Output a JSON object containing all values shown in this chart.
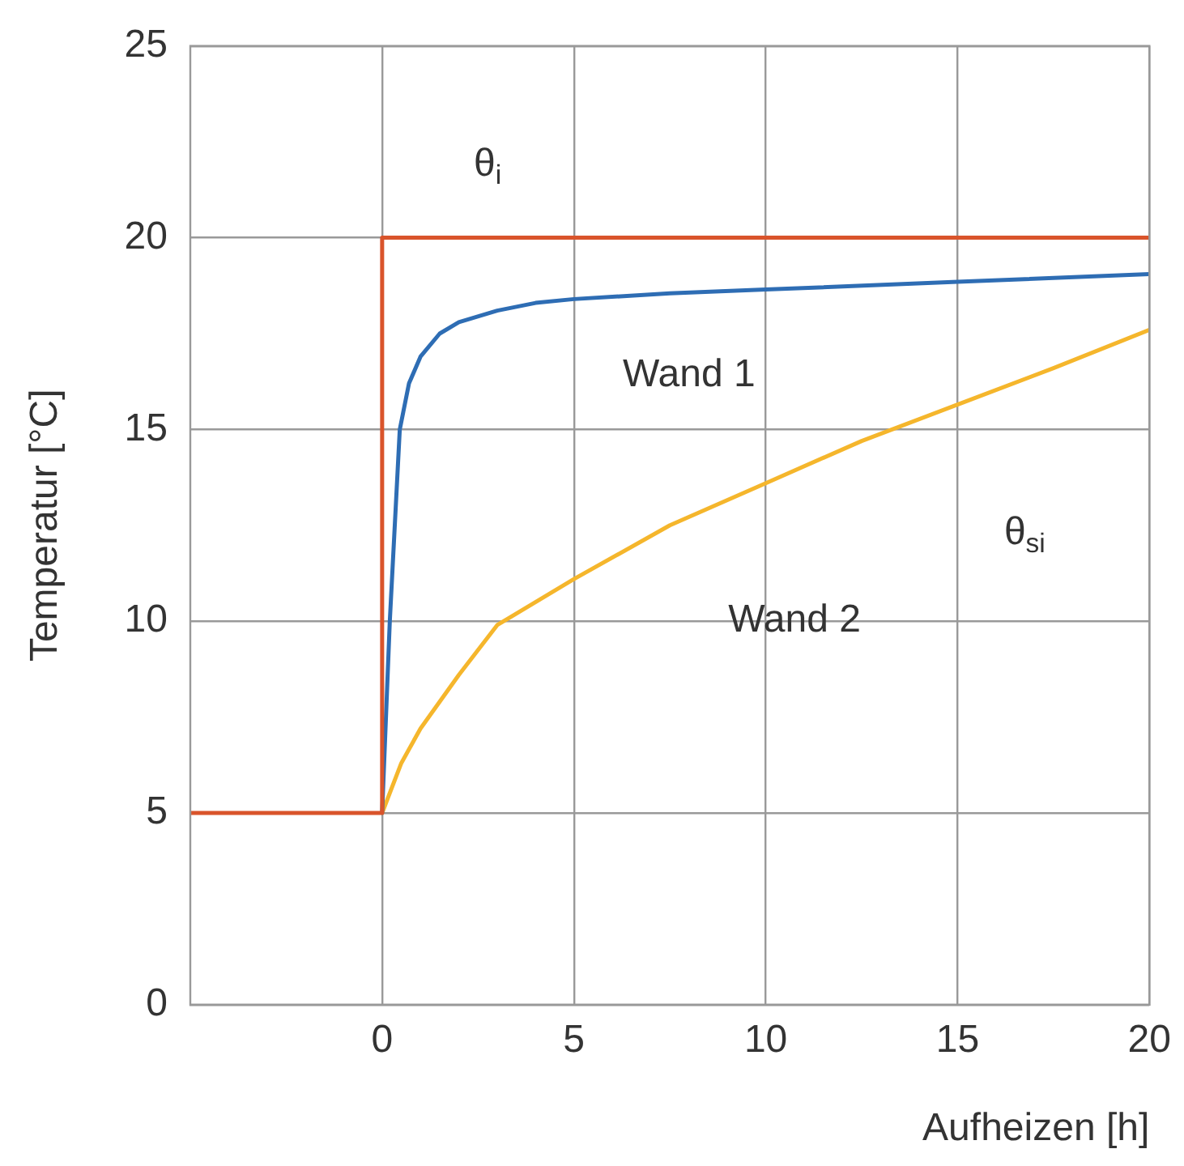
{
  "chart_data": {
    "type": "line",
    "xlabel": "Aufheizen [h]",
    "ylabel": "Temperatur [°C]",
    "xlim": [
      -5,
      20
    ],
    "xticks": [
      0,
      5,
      10,
      15,
      20
    ],
    "ylim": [
      0,
      25
    ],
    "yticks": [
      0,
      5,
      10,
      15,
      20,
      25
    ],
    "grid": true,
    "legend": false,
    "marker": "none",
    "line_style": "solid",
    "series": [
      {
        "name": "θ$_{i}$",
        "color": "#d9542b",
        "x": [
          -5,
          0,
          0,
          20
        ],
        "values": [
          5,
          5,
          20,
          20
        ]
      },
      {
        "name": "Wand 1",
        "color": "#2e6db4",
        "x": [
          0,
          0.2,
          0.46,
          0.7,
          1,
          1.5,
          2,
          3,
          4,
          5,
          7.5,
          10,
          15,
          20
        ],
        "values": [
          5,
          10,
          15,
          16.2,
          16.9,
          17.5,
          17.8,
          18.1,
          18.3,
          18.4,
          18.55,
          18.65,
          18.85,
          19.05
        ]
      },
      {
        "name": "Wand 2",
        "color": "#f5b62c",
        "x": [
          0,
          0.5,
          1,
          2,
          3,
          5,
          7.5,
          10,
          12.5,
          15,
          17.5,
          20
        ],
        "values": [
          5,
          6.3,
          7.2,
          8.6,
          9.9,
          11.1,
          12.5,
          13.6,
          14.7,
          15.65,
          16.6,
          17.6
        ]
      }
    ],
    "annotations": [
      "θ$_{si}$"
    ]
  }
}
